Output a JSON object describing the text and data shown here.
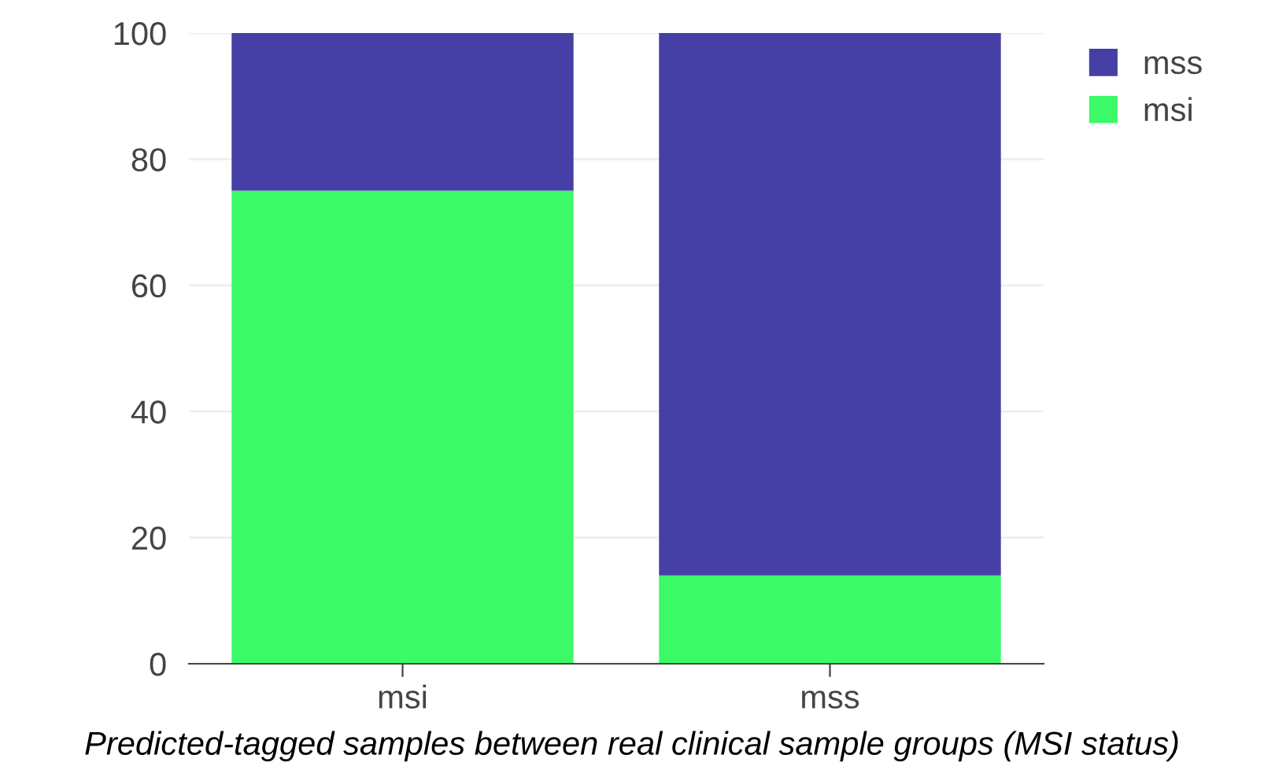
{
  "chart_data": {
    "type": "bar",
    "stacked": true,
    "categories": [
      "msi",
      "mss"
    ],
    "series": [
      {
        "name": "msi",
        "color": "#3cf968",
        "values": [
          75,
          14
        ]
      },
      {
        "name": "mss",
        "color": "#463fa5",
        "values": [
          25,
          86
        ]
      }
    ],
    "ylim": [
      0,
      100
    ],
    "yticks": [
      0,
      20,
      40,
      60,
      80,
      100
    ],
    "grid": "y",
    "legend": "top right",
    "annotations": [
      "Predicted-tagged samples between real clinical sample groups (MSI status)"
    ]
  }
}
